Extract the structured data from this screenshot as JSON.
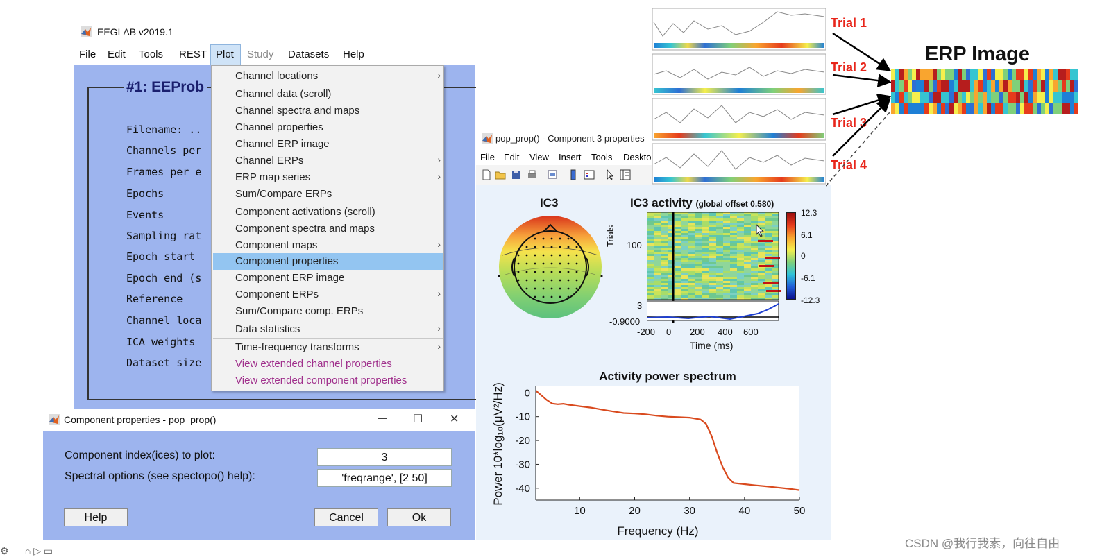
{
  "eeglab": {
    "title": "EEGLAB v2019.1",
    "menus": [
      "File",
      "Edit",
      "Tools",
      "REST",
      "Plot",
      "Study",
      "Datasets",
      "Help"
    ],
    "dataset_title": "#1: EEProb",
    "fields": [
      "Filename: ..",
      "Channels per",
      "Frames per e",
      "Epochs",
      "Events",
      "Sampling rat",
      "Epoch start",
      "Epoch end (s",
      "Reference",
      "Channel loca",
      "ICA weights",
      "Dataset size"
    ]
  },
  "plot_menu": {
    "items": [
      {
        "label": "Channel locations",
        "submenu": true
      },
      {
        "label": "Channel data (scroll)"
      },
      {
        "label": "Channel spectra and maps"
      },
      {
        "label": "Channel properties"
      },
      {
        "label": "Channel ERP image"
      },
      {
        "label": "Channel ERPs",
        "submenu": true
      },
      {
        "label": "ERP map series",
        "submenu": true
      },
      {
        "label": "Sum/Compare ERPs"
      },
      {
        "label": "Component activations (scroll)"
      },
      {
        "label": "Component spectra and maps"
      },
      {
        "label": "Component maps",
        "submenu": true
      },
      {
        "label": "Component properties",
        "selected": true
      },
      {
        "label": "Component ERP image"
      },
      {
        "label": "Component ERPs",
        "submenu": true
      },
      {
        "label": "Sum/Compare comp. ERPs"
      },
      {
        "label": "Data statistics",
        "submenu": true
      },
      {
        "label": "Time-frequency transforms",
        "submenu": true
      },
      {
        "label": "View extended channel properties",
        "plugin": true
      },
      {
        "label": "View extended component properties",
        "plugin": true
      }
    ],
    "submenu_glyph": "›"
  },
  "dialog": {
    "title": "Component properties - pop_prop()",
    "minimize": "—",
    "maximize": "☐",
    "close": "✕",
    "label_index": "Component index(ices) to plot:",
    "value_index": "3",
    "label_spectral": "Spectral options (see spectopo() help):",
    "value_spectral": "'freqrange', [2 50]",
    "help": "Help",
    "cancel": "Cancel",
    "ok": "Ok"
  },
  "figure": {
    "title": "pop_prop() - Component 3 properties",
    "menus": [
      "File",
      "Edit",
      "View",
      "Insert",
      "Tools",
      "Deskto"
    ],
    "topo_title": "IC3",
    "act_title": "IC3 activity",
    "act_offset": "(global offset 0.580)",
    "trials_label": "Trials",
    "y_tick_100": "100",
    "y_tick_3": "3",
    "y_tick_erp": "-0.9000",
    "x_ticks": [
      "-200",
      "0",
      "200",
      "400",
      "600"
    ],
    "time_label": "Time (ms)",
    "colorbar_ticks": [
      "12.3",
      "6.1",
      "0",
      "-6.1",
      "-12.3"
    ]
  },
  "chart_data": {
    "type": "line",
    "title": "Activity power spectrum",
    "xlabel": "Frequency (Hz)",
    "ylabel": "Power 10*log₁₀(μV²/Hz)",
    "xlim": [
      2,
      50
    ],
    "ylim": [
      -45,
      3
    ],
    "x_ticks": [
      10,
      20,
      30,
      40,
      50
    ],
    "y_ticks": [
      0,
      -10,
      -20,
      -30,
      -40
    ],
    "series": [
      {
        "x": [
          2,
          3,
          4,
          5,
          6,
          7,
          8,
          10,
          12,
          14,
          16,
          18,
          20,
          22,
          24,
          26,
          28,
          30,
          32,
          33,
          34,
          35,
          36,
          37,
          38,
          40,
          42,
          44,
          46,
          48,
          50
        ],
        "y": [
          1,
          -1,
          -3,
          -4.5,
          -4.8,
          -4.6,
          -5,
          -5.6,
          -6.2,
          -7,
          -7.8,
          -8.5,
          -8.7,
          -9,
          -9.6,
          -10,
          -10.2,
          -10.4,
          -11.2,
          -13,
          -18,
          -25,
          -31,
          -35.5,
          -37.8,
          -38.3,
          -38.8,
          -39.2,
          -39.7,
          -40.2,
          -40.8
        ],
        "color": "#d94a1e"
      }
    ]
  },
  "erp_overlay": {
    "trials": [
      "Trial 1",
      "Trial 2",
      "Trial 3",
      "Trial 4"
    ],
    "title": "ERP Image"
  },
  "watermark": "CSDN @我行我素，向往自由",
  "colors": {
    "eeglab_bg": "#9db4ee",
    "dialog_bg": "#9db4ee",
    "menu_highlight": "#93c5f1",
    "plugin_text": "#a0308c",
    "trial_red": "#e8261b",
    "spectrum_line": "#d94a1e"
  }
}
